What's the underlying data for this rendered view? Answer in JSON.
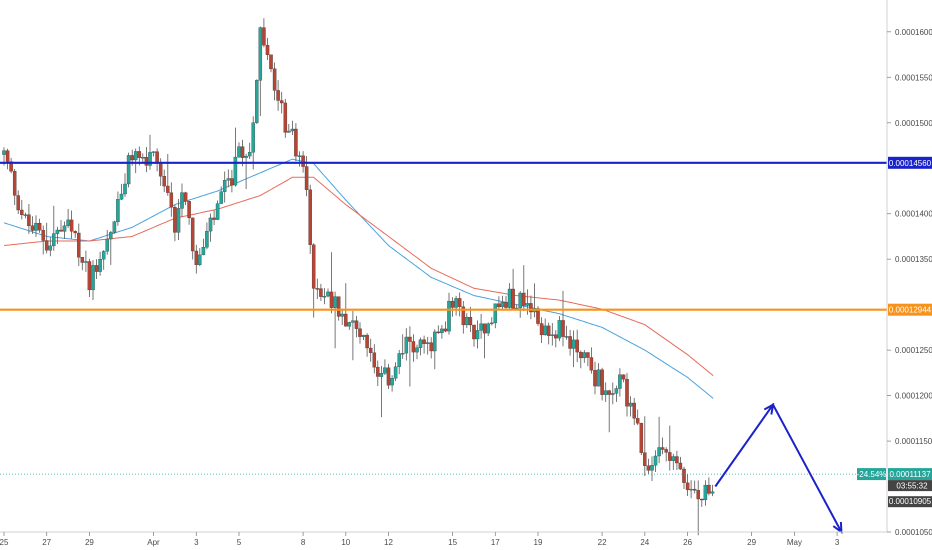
{
  "chart_data": {
    "type": "candlestick",
    "title": "",
    "xlabel": "",
    "ylabel": "",
    "ylim": [
      0.000105,
      0.0001635
    ],
    "y_ticks": [
      "0.00016000",
      "0.00015500",
      "0.00015000",
      "0.00014000",
      "0.00013500",
      "0.00012500",
      "0.00012000",
      "0.00011500",
      "0.00010500"
    ],
    "x_ticks": [
      {
        "day": 25,
        "label": "25"
      },
      {
        "day": 27,
        "label": "27"
      },
      {
        "day": 29,
        "label": "29"
      },
      {
        "day": 32,
        "label": "Apr"
      },
      {
        "day": 34,
        "label": "3"
      },
      {
        "day": 36,
        "label": "5"
      },
      {
        "day": 39,
        "label": "8"
      },
      {
        "day": 41,
        "label": "10"
      },
      {
        "day": 43,
        "label": "12"
      },
      {
        "day": 46,
        "label": "15"
      },
      {
        "day": 48,
        "label": "17"
      },
      {
        "day": 50,
        "label": "19"
      },
      {
        "day": 53,
        "label": "22"
      },
      {
        "day": 55,
        "label": "24"
      },
      {
        "day": 57,
        "label": "26"
      },
      {
        "day": 60,
        "label": "29"
      },
      {
        "day": 62,
        "label": "May"
      },
      {
        "day": 64,
        "label": "3"
      }
    ],
    "day_range": [
      25,
      65.4
    ],
    "candles_anchor_close": [
      [
        25,
        0.0001465
      ],
      [
        26,
        0.000139
      ],
      [
        27,
        0.000137
      ],
      [
        28,
        0.0001385
      ],
      [
        29,
        0.000133
      ],
      [
        30,
        0.000138
      ],
      [
        31,
        0.0001465
      ],
      [
        32,
        0.0001455
      ],
      [
        33,
        0.000139
      ],
      [
        33.4,
        0.000144
      ],
      [
        34,
        0.000134
      ],
      [
        35,
        0.0001405
      ],
      [
        36,
        0.000146
      ],
      [
        36.5,
        0.000147
      ],
      [
        37,
        0.0001595
      ],
      [
        37.4,
        0.000156
      ],
      [
        38,
        0.000151
      ],
      [
        39,
        0.0001455
      ],
      [
        39.5,
        0.000133
      ],
      [
        40,
        0.000131
      ],
      [
        41,
        0.000129
      ],
      [
        42,
        0.000126
      ],
      [
        42.5,
        0.000121
      ],
      [
        43,
        0.000122
      ],
      [
        44,
        0.000126
      ],
      [
        45,
        0.000125
      ],
      [
        46,
        0.00013
      ],
      [
        47,
        0.000127
      ],
      [
        48,
        0.0001295
      ],
      [
        49,
        0.000131
      ],
      [
        50,
        0.000128
      ],
      [
        51,
        0.000127
      ],
      [
        52,
        0.000125
      ],
      [
        53,
        0.000121
      ],
      [
        54,
        0.000121
      ],
      [
        54.5,
        0.000118
      ],
      [
        55,
        0.000111
      ],
      [
        56,
        0.000115
      ],
      [
        57,
        0.00011
      ],
      [
        57.5,
        0.000109
      ],
      [
        58,
        0.000109
      ],
      [
        58.3,
        0.00011
      ]
    ],
    "ma_fast_anchors": [
      [
        25,
        0.000139
      ],
      [
        27,
        0.0001375
      ],
      [
        29,
        0.000137
      ],
      [
        31,
        0.0001385
      ],
      [
        33,
        0.000141
      ],
      [
        35,
        0.0001425
      ],
      [
        37,
        0.0001445
      ],
      [
        38.5,
        0.000146
      ],
      [
        39.5,
        0.0001455
      ],
      [
        41,
        0.0001415
      ],
      [
        43,
        0.0001365
      ],
      [
        45,
        0.000133
      ],
      [
        47,
        0.000131
      ],
      [
        49,
        0.00013
      ],
      [
        51,
        0.000129
      ],
      [
        53,
        0.0001275
      ],
      [
        55,
        0.000125
      ],
      [
        57,
        0.000122
      ],
      [
        58.3,
        0.0001195
      ]
    ],
    "ma_slow_anchors": [
      [
        25,
        0.0001365
      ],
      [
        27,
        0.000137
      ],
      [
        29,
        0.000137
      ],
      [
        31,
        0.0001375
      ],
      [
        33,
        0.0001395
      ],
      [
        35,
        0.0001405
      ],
      [
        37,
        0.000142
      ],
      [
        38.5,
        0.000144
      ],
      [
        39.5,
        0.000144
      ],
      [
        41,
        0.000141
      ],
      [
        43,
        0.0001375
      ],
      [
        45,
        0.000134
      ],
      [
        47,
        0.0001318
      ],
      [
        49,
        0.000131
      ],
      [
        51,
        0.0001305
      ],
      [
        53,
        0.0001295
      ],
      [
        55,
        0.0001278
      ],
      [
        57,
        0.0001245
      ],
      [
        58.3,
        0.000122
      ]
    ],
    "horizontal_lines": [
      {
        "price": 0.0001456,
        "color": "#1a23c9",
        "label": "0.00014560",
        "label_bg": "#1a23c9"
      },
      {
        "price": 0.00012944,
        "color": "#f7931a",
        "label": "0.00012944",
        "label_bg": "#f7931a"
      }
    ],
    "current_price": {
      "price": 0.00011137,
      "label": "0.00011137",
      "change": "-24.54%",
      "countdown": "03:55:32",
      "color": "#26a69a"
    },
    "last_close_tag": {
      "price": 0.00010905,
      "label": "0.00010905"
    },
    "projection": [
      [
        58.3,
        0.00011
      ],
      [
        61,
        0.000119
      ],
      [
        64.2,
        0.000105
      ]
    ],
    "colors": {
      "up": "#26a69a",
      "down": "#b84434",
      "ma_fast": "#4aa3df",
      "ma_slow": "#e86a5a",
      "projection": "#1a23c9"
    }
  }
}
